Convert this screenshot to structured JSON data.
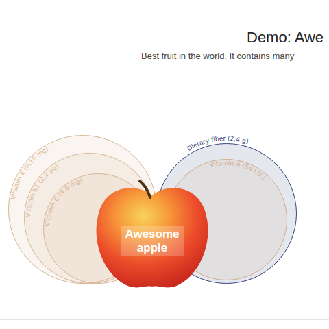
{
  "chart_data": {
    "type": "nested_circles",
    "title": "Demo: Awe",
    "subtitle": "Best fruit in the world. It contains many",
    "center_label": [
      "Awesome",
      "apple"
    ],
    "values": [
      0.18,
      2.2,
      4.6,
      2.4,
      54
    ],
    "value_labels": [
      "Vitamin E (0,18 mg)",
      "Vitamin K1 (2,2 µg)",
      "Vitamin C (4,6 mg)",
      "Dietary fiber (2,4 g)",
      "Vitamin A (54 I.U.)"
    ],
    "sizes": [
      108,
      95,
      80,
      102,
      88
    ],
    "colors": [
      "#d6b593",
      "#d6b593",
      "#d6b593",
      "#35427a",
      "#d0ad8a"
    ],
    "data_labels": true
  }
}
